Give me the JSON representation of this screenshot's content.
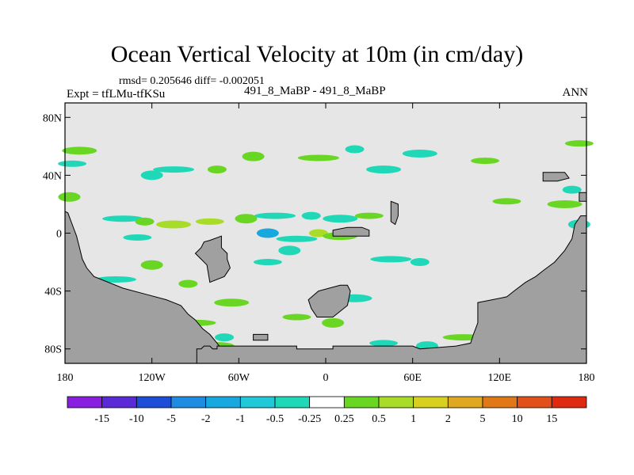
{
  "chart_data": {
    "type": "heatmap",
    "title": "Ocean Vertical Velocity at 10m (in cm/day)",
    "stats_line": "rmsd= 0.205646 diff= -0.002051",
    "left_subtitle": "Expt = tfLMu-tfKSu",
    "center_subtitle": "491_8_MaBP - 491_8_MaBP",
    "right_subtitle": "ANN",
    "x_axis": {
      "range": [
        -180,
        180
      ],
      "ticks": [
        {
          "value": -180,
          "label": "180"
        },
        {
          "value": -120,
          "label": "120W"
        },
        {
          "value": -60,
          "label": "60W"
        },
        {
          "value": 0,
          "label": "0"
        },
        {
          "value": 60,
          "label": "60E"
        },
        {
          "value": 120,
          "label": "120E"
        },
        {
          "value": 180,
          "label": "180"
        }
      ]
    },
    "y_axis": {
      "range": [
        -90,
        90
      ],
      "ticks": [
        {
          "value": 80,
          "label": "80N"
        },
        {
          "value": 40,
          "label": "40N"
        },
        {
          "value": 0,
          "label": "0"
        },
        {
          "value": -40,
          "label": "40S"
        },
        {
          "value": -80,
          "label": "80S"
        }
      ]
    },
    "colorbar": {
      "colors": [
        "#8a1ee0",
        "#5a2ad6",
        "#1e4ed8",
        "#1e8ce0",
        "#18a8e0",
        "#20c8d8",
        "#20d8b8",
        "#ffffff",
        "#6ad624",
        "#a8dc28",
        "#d8d020",
        "#e0a820",
        "#e07818",
        "#e05018",
        "#e02a10"
      ],
      "labels": [
        "-15",
        "-10",
        "-5",
        "-2",
        "-1",
        "-0.5",
        "-0.25",
        "0.25",
        "0.5",
        "1",
        "2",
        "5",
        "10",
        "15"
      ]
    },
    "field_background": "#e6e6e6",
    "land_color": "#a0a0a0",
    "anomaly_patches": [
      {
        "lon": -170,
        "lat": 57,
        "level": 8
      },
      {
        "lon": -175,
        "lat": 48,
        "level": 6
      },
      {
        "lon": -50,
        "lat": 53,
        "level": 8
      },
      {
        "lon": -5,
        "lat": 52,
        "level": 8
      },
      {
        "lon": 20,
        "lat": 58,
        "level": 6
      },
      {
        "lon": 65,
        "lat": 55,
        "level": 6
      },
      {
        "lon": 110,
        "lat": 50,
        "level": 8
      },
      {
        "lon": -120,
        "lat": 40,
        "level": 6
      },
      {
        "lon": -105,
        "lat": 44,
        "level": 6
      },
      {
        "lon": -75,
        "lat": 44,
        "level": 8
      },
      {
        "lon": 40,
        "lat": 44,
        "level": 6
      },
      {
        "lon": 125,
        "lat": 22,
        "level": 8
      },
      {
        "lon": -177,
        "lat": 25,
        "level": 8
      },
      {
        "lon": -140,
        "lat": 10,
        "level": 6
      },
      {
        "lon": -125,
        "lat": 8,
        "level": 8
      },
      {
        "lon": -105,
        "lat": 6,
        "level": 9
      },
      {
        "lon": -80,
        "lat": 8,
        "level": 9
      },
      {
        "lon": -55,
        "lat": 10,
        "level": 8
      },
      {
        "lon": -35,
        "lat": 12,
        "level": 6
      },
      {
        "lon": -10,
        "lat": 12,
        "level": 6
      },
      {
        "lon": 10,
        "lat": 10,
        "level": 6
      },
      {
        "lon": 30,
        "lat": 12,
        "level": 8
      },
      {
        "lon": -40,
        "lat": 0,
        "level": 4
      },
      {
        "lon": -20,
        "lat": -4,
        "level": 6
      },
      {
        "lon": -5,
        "lat": 0,
        "level": 9
      },
      {
        "lon": 10,
        "lat": -2,
        "level": 8
      },
      {
        "lon": -130,
        "lat": -3,
        "level": 6
      },
      {
        "lon": -120,
        "lat": -22,
        "level": 8
      },
      {
        "lon": -145,
        "lat": -32,
        "level": 6
      },
      {
        "lon": -95,
        "lat": -35,
        "level": 8
      },
      {
        "lon": -65,
        "lat": -48,
        "level": 8
      },
      {
        "lon": -40,
        "lat": -20,
        "level": 6
      },
      {
        "lon": -25,
        "lat": -12,
        "level": 6
      },
      {
        "lon": 45,
        "lat": -18,
        "level": 6
      },
      {
        "lon": 65,
        "lat": -20,
        "level": 6
      },
      {
        "lon": 20,
        "lat": -45,
        "level": 6
      },
      {
        "lon": -20,
        "lat": -58,
        "level": 8
      },
      {
        "lon": 5,
        "lat": -62,
        "level": 8
      },
      {
        "lon": -90,
        "lat": -62,
        "level": 8
      },
      {
        "lon": -70,
        "lat": -72,
        "level": 6
      },
      {
        "lon": -75,
        "lat": -78,
        "level": 8
      },
      {
        "lon": 40,
        "lat": -76,
        "level": 6
      },
      {
        "lon": 70,
        "lat": -78,
        "level": 6
      },
      {
        "lon": 95,
        "lat": -72,
        "level": 8
      },
      {
        "lon": 170,
        "lat": 30,
        "level": 6
      },
      {
        "lon": 165,
        "lat": 20,
        "level": 8
      },
      {
        "lon": 175,
        "lat": 62,
        "level": 8
      },
      {
        "lon": 175,
        "lat": 6,
        "level": 6
      }
    ]
  }
}
